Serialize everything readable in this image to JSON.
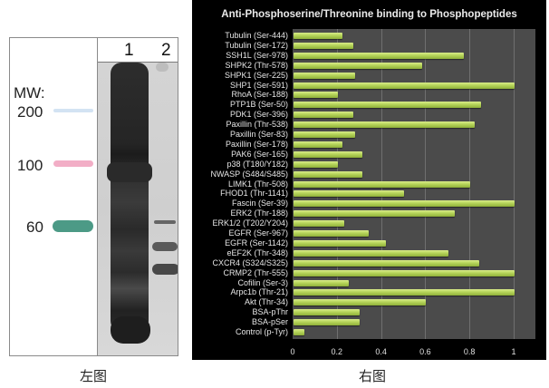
{
  "left_figure": {
    "caption": "左图",
    "mw_title": "MW:",
    "mw_markers": [
      {
        "label": "200",
        "color": "#9fc4e8"
      },
      {
        "label": "100",
        "color": "#e86a9a"
      },
      {
        "label": "60",
        "color": "#3e8f7a"
      }
    ],
    "lanes": [
      "1",
      "2"
    ]
  },
  "right_figure": {
    "caption": "右图"
  },
  "chart_data": {
    "type": "bar",
    "orientation": "horizontal",
    "title": "Anti-Phosphoserine/Threonine binding to Phosphopeptides",
    "xlabel": "",
    "ylabel": "",
    "xlim": [
      0,
      1.1
    ],
    "xticks": [
      "0",
      "0.2",
      "0.4",
      "0.6",
      "0.8",
      "1"
    ],
    "grid": "vertical",
    "legend": "none",
    "bar_color": "#b6d45a",
    "background_color": "#4b4b4b",
    "categories": [
      "Tubulin (Ser-444)",
      "Tubulin (Ser-172)",
      "SSH1L (Ser-978)",
      "SHPK2 (Thr-578)",
      "SHPK1 (Ser-225)",
      "SHP1 (Ser-591)",
      "RhoA (Ser-188)",
      "PTP1B (Ser-50)",
      "PDK1 (Ser-396)",
      "Paxillin (Thr-538)",
      "Paxillin (Ser-83)",
      "Paxillin (Ser-178)",
      "PAK6 (Ser-165)",
      "p38 (T180/Y182)",
      "NWASP (S484/S485)",
      "LIMK1 (Thr-508)",
      "FHOD1 (Thr-1141)",
      "Fascin (Ser-39)",
      "ERK2 (Thr-188)",
      "ERK1/2 (T202/Y204)",
      "EGFR (Ser-967)",
      "EGFR (Ser-1142)",
      "eEF2K (Thr-348)",
      "CXCR4 (S324/S325)",
      "CRMP2 (Thr-555)",
      "Cofilin (Ser-3)",
      "Arpc1b (Thr-21)",
      "Akt (Thr-34)",
      "BSA-pThr",
      "BSA-pSer",
      "Control (p-Tyr)"
    ],
    "values": [
      0.22,
      0.27,
      0.77,
      0.58,
      0.28,
      1.0,
      0.2,
      0.85,
      0.27,
      0.82,
      0.28,
      0.22,
      0.31,
      0.2,
      0.31,
      0.8,
      0.5,
      1.0,
      0.73,
      0.23,
      0.34,
      0.42,
      0.7,
      0.84,
      1.0,
      0.25,
      1.0,
      0.6,
      0.3,
      0.3,
      0.05
    ]
  }
}
